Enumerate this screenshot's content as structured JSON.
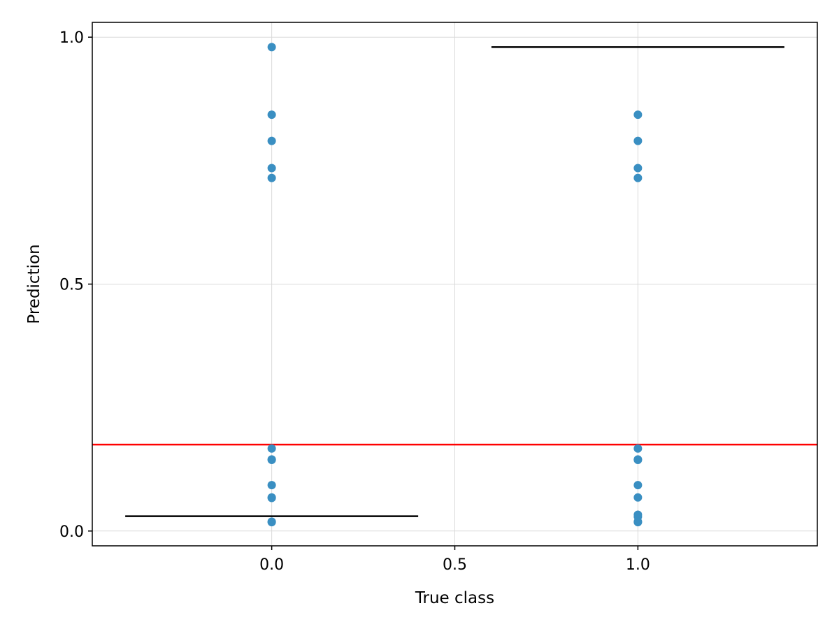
{
  "chart_data": {
    "type": "scatter",
    "title": "",
    "xlabel": "True class",
    "ylabel": "Prediction",
    "xlim": [
      -0.49,
      1.49
    ],
    "ylim": [
      -0.03,
      1.03
    ],
    "grid": true,
    "x_ticks": [
      {
        "value": 0.0,
        "label": "0.0"
      },
      {
        "value": 0.5,
        "label": "0.5"
      },
      {
        "value": 1.0,
        "label": "1.0"
      }
    ],
    "y_ticks": [
      {
        "value": 0.0,
        "label": "0.0"
      },
      {
        "value": 0.5,
        "label": "0.5"
      },
      {
        "value": 1.0,
        "label": "1.0"
      }
    ],
    "point_color": "#3a8fc2",
    "series": [
      {
        "x": [
          0,
          0,
          0,
          0,
          0,
          0,
          0,
          0,
          0,
          0,
          0,
          0,
          0
        ],
        "y": [
          0.98,
          0.843,
          0.79,
          0.735,
          0.715,
          0.167,
          0.145,
          0.144,
          0.093,
          0.068,
          0.067,
          0.019,
          0.018
        ]
      },
      {
        "x": [
          1,
          1,
          1,
          1,
          1,
          1,
          1,
          1,
          1,
          1,
          1,
          1,
          1
        ],
        "y": [
          0.843,
          0.79,
          0.735,
          0.715,
          0.167,
          0.145,
          0.144,
          0.093,
          0.068,
          0.033,
          0.029,
          0.019,
          0.018
        ]
      }
    ],
    "hlines": [
      {
        "y": 0.175,
        "color": "#ff0000",
        "full_width": true
      },
      {
        "y": 0.03,
        "x_start": -0.4,
        "x_end": 0.4,
        "color": "#000000"
      },
      {
        "y": 0.98,
        "x_start": 0.6,
        "x_end": 1.4,
        "color": "#000000"
      }
    ]
  }
}
